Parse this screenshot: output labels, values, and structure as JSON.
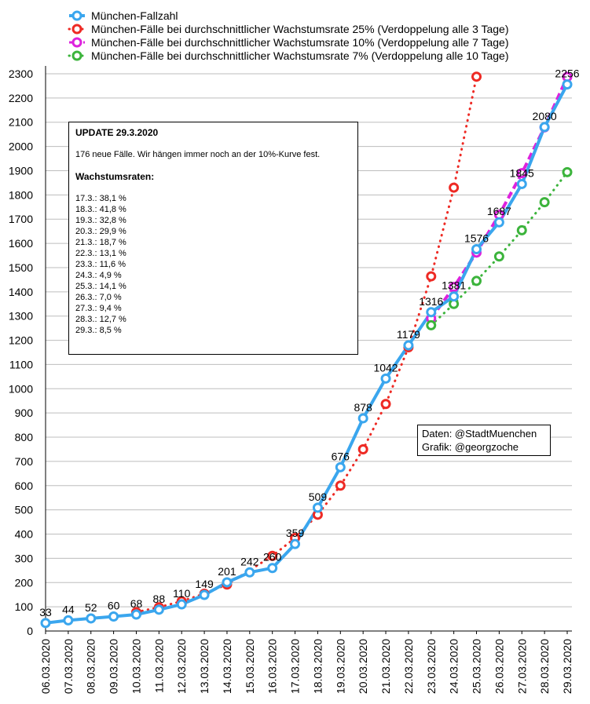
{
  "chart_data": {
    "type": "line",
    "categories": [
      "06.03.2020",
      "07.03.2020",
      "08.03.2020",
      "09.03.2020",
      "10.03.2020",
      "11.03.2020",
      "12.03.2020",
      "13.03.2020",
      "14.03.2020",
      "15.03.2020",
      "16.03.2020",
      "17.03.2020",
      "18.03.2020",
      "19.03.2020",
      "20.03.2020",
      "21.03.2020",
      "22.03.2020",
      "23.03.2020",
      "24.03.2020",
      "25.03.2020",
      "26.03.2020",
      "27.03.2020",
      "28.03.2020",
      "29.03.2020"
    ],
    "yticks": [
      "0",
      "100",
      "200",
      "300",
      "400",
      "500",
      "600",
      "700",
      "800",
      "900",
      "1000",
      "1100",
      "1200",
      "1300",
      "1400",
      "1500",
      "1600",
      "1700",
      "1800",
      "1900",
      "2000",
      "2100",
      "2200",
      "2300"
    ],
    "ylim": [
      0,
      2300
    ],
    "grid": "horizontal",
    "legend_position": "top",
    "series": [
      {
        "name": "München-Fallzahl",
        "color": "#3aa6ee",
        "style": "solid",
        "values": [
          33,
          44,
          52,
          60,
          68,
          88,
          110,
          149,
          201,
          242,
          260,
          359,
          509,
          676,
          878,
          1042,
          1179,
          1316,
          1381,
          1576,
          1687,
          1845,
          2080,
          2256
        ],
        "labels": [
          "33",
          "44",
          "52",
          "60",
          "68",
          "88",
          "110",
          "149",
          "201",
          "242",
          "260",
          "359",
          "509",
          "676",
          "878",
          "1042",
          "1179",
          "1316",
          "1381",
          "1576",
          "1687",
          "1845",
          "2080",
          "2256"
        ]
      },
      {
        "name": "München-Fälle bei durchschnittlicher Wachstumsrate 25% (Verdoppelung alle 3 Tage)",
        "color": "#ee2a24",
        "style": "dotted",
        "values": [
          null,
          null,
          null,
          null,
          78,
          98,
          123,
          154,
          192,
          null,
          310,
          384,
          480,
          600,
          750,
          937,
          1171,
          1464,
          1830,
          2288,
          null,
          null,
          null,
          null
        ]
      },
      {
        "name": "München-Fälle bei durchschnittlicher Wachstumsrate 10% (Verdoppelung alle 7 Tage)",
        "color": "#dd22dd",
        "style": "dashed",
        "values": [
          null,
          null,
          null,
          null,
          null,
          null,
          null,
          null,
          null,
          null,
          null,
          null,
          null,
          null,
          null,
          null,
          null,
          1290,
          1420,
          1562,
          1718,
          1890,
          2079,
          2287
        ]
      },
      {
        "name": "München-Fälle bei durchschnittlicher Wachstumsrate 7% (Verdoppelung alle 10 Tage)",
        "color": "#3cb43c",
        "style": "dotted",
        "values": [
          null,
          null,
          null,
          null,
          null,
          null,
          null,
          null,
          null,
          null,
          null,
          null,
          null,
          null,
          null,
          null,
          null,
          1262,
          1350,
          1445,
          1546,
          1654,
          1770,
          1894
        ]
      }
    ],
    "annotations": {
      "update": {
        "title": "UPDATE 29.3.2020",
        "text": "176 neue Fälle. Wir hängen immer noch an der 10%-Kurve fest.",
        "rates_title": "Wachstumsraten:",
        "rates": [
          "17.3.: 38,1 %",
          "18.3.: 41,8 %",
          "19.3.: 32,8 %",
          "20.3.: 29,9 %",
          "21.3.: 18,7 %",
          "22.3.: 13,1 %",
          "23.3.: 11,6 %",
          "24.3.: 4,9 %",
          "25.3.: 14,1 %",
          "26.3.: 7,0 %",
          "27.3.: 9,4 %",
          "28.3.: 12,7 %",
          "29.3.: 8,5 %"
        ]
      },
      "credits": [
        "Daten: @StadtMuenchen",
        "Grafik: @georgzoche"
      ]
    }
  }
}
